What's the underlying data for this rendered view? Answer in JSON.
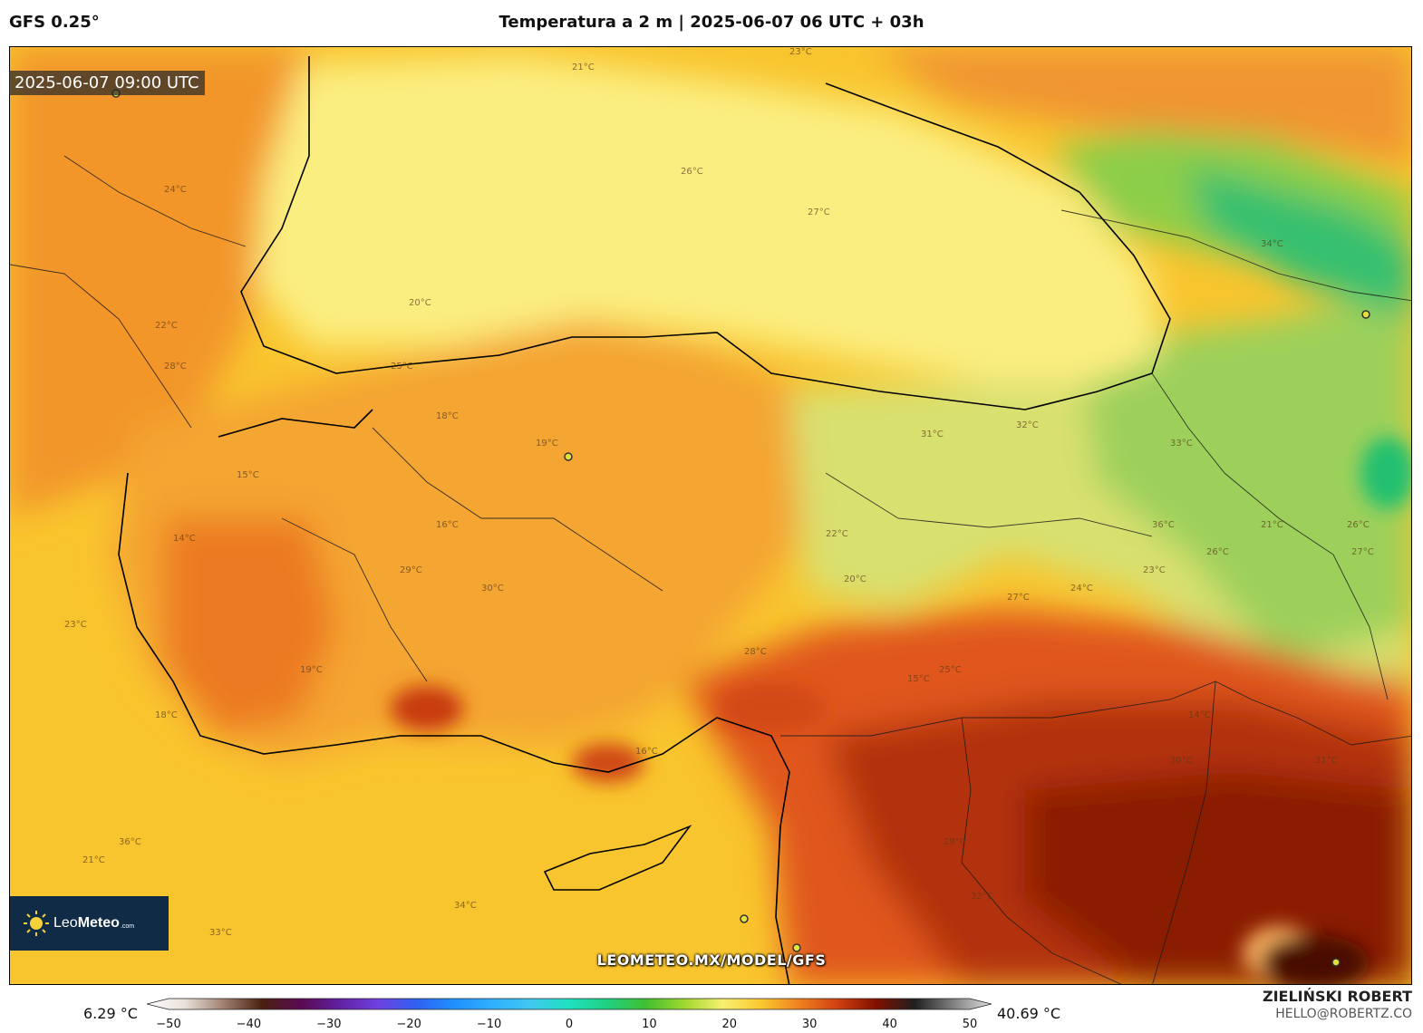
{
  "header": {
    "model": "GFS 0.25°",
    "title": "Temperatura a 2 m | 2025-06-07 06 UTC + 03h"
  },
  "map": {
    "valid_time": "2025-06-07 09:00 UTC",
    "watermark": "LEOMETEO.MX/MODEL/GFS",
    "logo": {
      "name_light": "Leo",
      "name_bold": "Meteo",
      "suffix": ".com"
    },
    "contour_labels": [
      "21°C",
      "23°C",
      "26°C",
      "27°C",
      "24°C",
      "20°C",
      "22°C",
      "28°C",
      "25°C",
      "19°C",
      "18°C",
      "16°C",
      "15°C",
      "14°C",
      "29°C",
      "30°C",
      "31°C",
      "32°C",
      "33°C",
      "34°C",
      "36°C"
    ]
  },
  "colorbar": {
    "min_label": "6.29 °C",
    "max_label": "40.69 °C",
    "ticks": [
      "−50",
      "−40",
      "−30",
      "−20",
      "−10",
      "0",
      "10",
      "20",
      "30",
      "40",
      "50"
    ],
    "tick_values": [
      -50,
      -40,
      -30,
      -20,
      -10,
      0,
      10,
      20,
      30,
      40,
      50
    ],
    "range": [
      -55,
      55
    ],
    "stops": [
      {
        "v": -55,
        "c": "#ffffff"
      },
      {
        "v": -50,
        "c": "#e8e0d8"
      },
      {
        "v": -45,
        "c": "#a08070"
      },
      {
        "v": -40,
        "c": "#4a2010"
      },
      {
        "v": -35,
        "c": "#5a0a50"
      },
      {
        "v": -30,
        "c": "#6020a0"
      },
      {
        "v": -25,
        "c": "#7040e0"
      },
      {
        "v": -20,
        "c": "#3060f0"
      },
      {
        "v": -15,
        "c": "#2090ff"
      },
      {
        "v": -10,
        "c": "#30b0ff"
      },
      {
        "v": -5,
        "c": "#40c8f0"
      },
      {
        "v": 0,
        "c": "#20e0c0"
      },
      {
        "v": 5,
        "c": "#20d080"
      },
      {
        "v": 10,
        "c": "#40c030"
      },
      {
        "v": 15,
        "c": "#a0d830"
      },
      {
        "v": 20,
        "c": "#f8f070"
      },
      {
        "v": 25,
        "c": "#fbc830"
      },
      {
        "v": 30,
        "c": "#f08020"
      },
      {
        "v": 35,
        "c": "#d04010"
      },
      {
        "v": 40,
        "c": "#801000"
      },
      {
        "v": 45,
        "c": "#202020"
      },
      {
        "v": 50,
        "c": "#808080"
      },
      {
        "v": 55,
        "c": "#e0e0e0"
      }
    ]
  },
  "credits": {
    "author": "ZIELIŃSKI ROBERT",
    "email": "HELLO@ROBERTZ.CO"
  }
}
